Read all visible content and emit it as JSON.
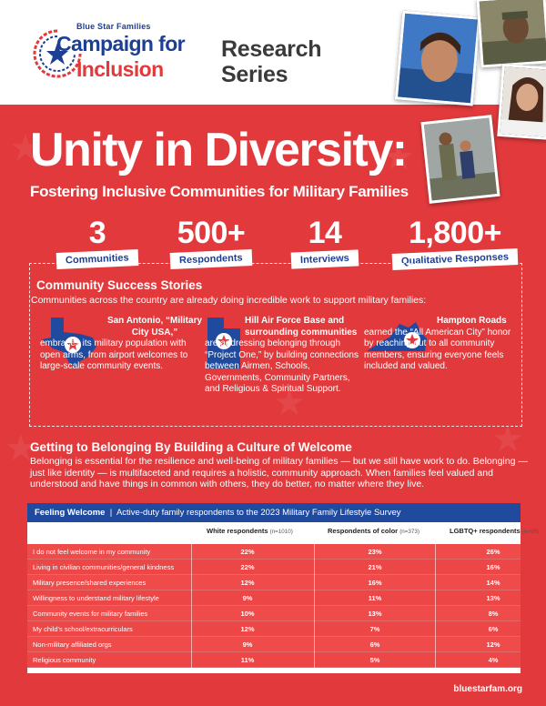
{
  "header": {
    "logo": {
      "org": "Blue Star Families",
      "line1": "Campaign for",
      "line2": "Inclusion"
    },
    "series_line1": "Research",
    "series_line2": "Series"
  },
  "title": "Unity in Diversity:",
  "subtitle": "Fostering Inclusive Communities for Military Families",
  "stats": [
    {
      "value": "3",
      "label": "Communities"
    },
    {
      "value": "500+",
      "label": "Respondents"
    },
    {
      "value": "14",
      "label": "Interviews"
    },
    {
      "value": "1,800+",
      "label": "Qualitative Responses"
    }
  ],
  "success": {
    "title": "Community Success Stories",
    "intro": "Communities across the country are already doing incredible work to support military families:",
    "stories": [
      {
        "lead": "San Antonio, “Military City USA,”",
        "text": "embraces its military population with open arms, from airport welcomes to large-scale community events."
      },
      {
        "lead": "Hill Air Force Base and surrounding communities",
        "text": "are addressing belonging through “Project One,” by building connections between Airmen, Schools, Governments, Community Partners, and Religious & Spiritual Support."
      },
      {
        "lead": "Hampton Roads",
        "text": "earned the “All American City” honor by reaching out to all community members, ensuring everyone feels included and valued."
      }
    ]
  },
  "belonging": {
    "title": "Getting to Belonging By Building a Culture of Welcome",
    "text": "Belonging is essential for the resilience and well-being of military families — but we still have work to do. Belonging — just like identity — is multifaceted and requires a holistic, community approach. When families feel valued and understood and have things in common with others, they do better, no matter where they live."
  },
  "table": {
    "title": "Feeling Welcome",
    "caption": "Active-duty family respondents to the 2023 Military Family Lifestyle Survey",
    "columns": [
      {
        "label": "White respondents",
        "n": "(n=1010)"
      },
      {
        "label": "Respondents of color",
        "n": "(n=373)"
      },
      {
        "label": "LGBTQ+ respondents",
        "n": "(n=95)"
      }
    ],
    "rows": [
      {
        "label": "I do not feel welcome in my community",
        "values": [
          "22%",
          "23%",
          "26%"
        ]
      },
      {
        "label": "Living in civilian communities/general kindness",
        "values": [
          "22%",
          "21%",
          "16%"
        ]
      },
      {
        "label": "Military presence/shared experiences",
        "values": [
          "12%",
          "16%",
          "14%"
        ]
      },
      {
        "label": "Willingness to understand military lifestyle",
        "values": [
          "9%",
          "11%",
          "13%"
        ]
      },
      {
        "label": "Community events for military families",
        "values": [
          "10%",
          "13%",
          "8%"
        ]
      },
      {
        "label": "My child's school/extracurriculars",
        "values": [
          "12%",
          "7%",
          "6%"
        ]
      },
      {
        "label": "Non-military affiliated orgs",
        "values": [
          "9%",
          "6%",
          "12%"
        ]
      },
      {
        "label": "Religious community",
        "values": [
          "11%",
          "5%",
          "4%"
        ]
      }
    ]
  },
  "footer": {
    "url": "bluestarfam.org"
  },
  "colors": {
    "red": "#e23a3c",
    "navy": "#1c3f94",
    "table_header": "#1f4a9e"
  }
}
